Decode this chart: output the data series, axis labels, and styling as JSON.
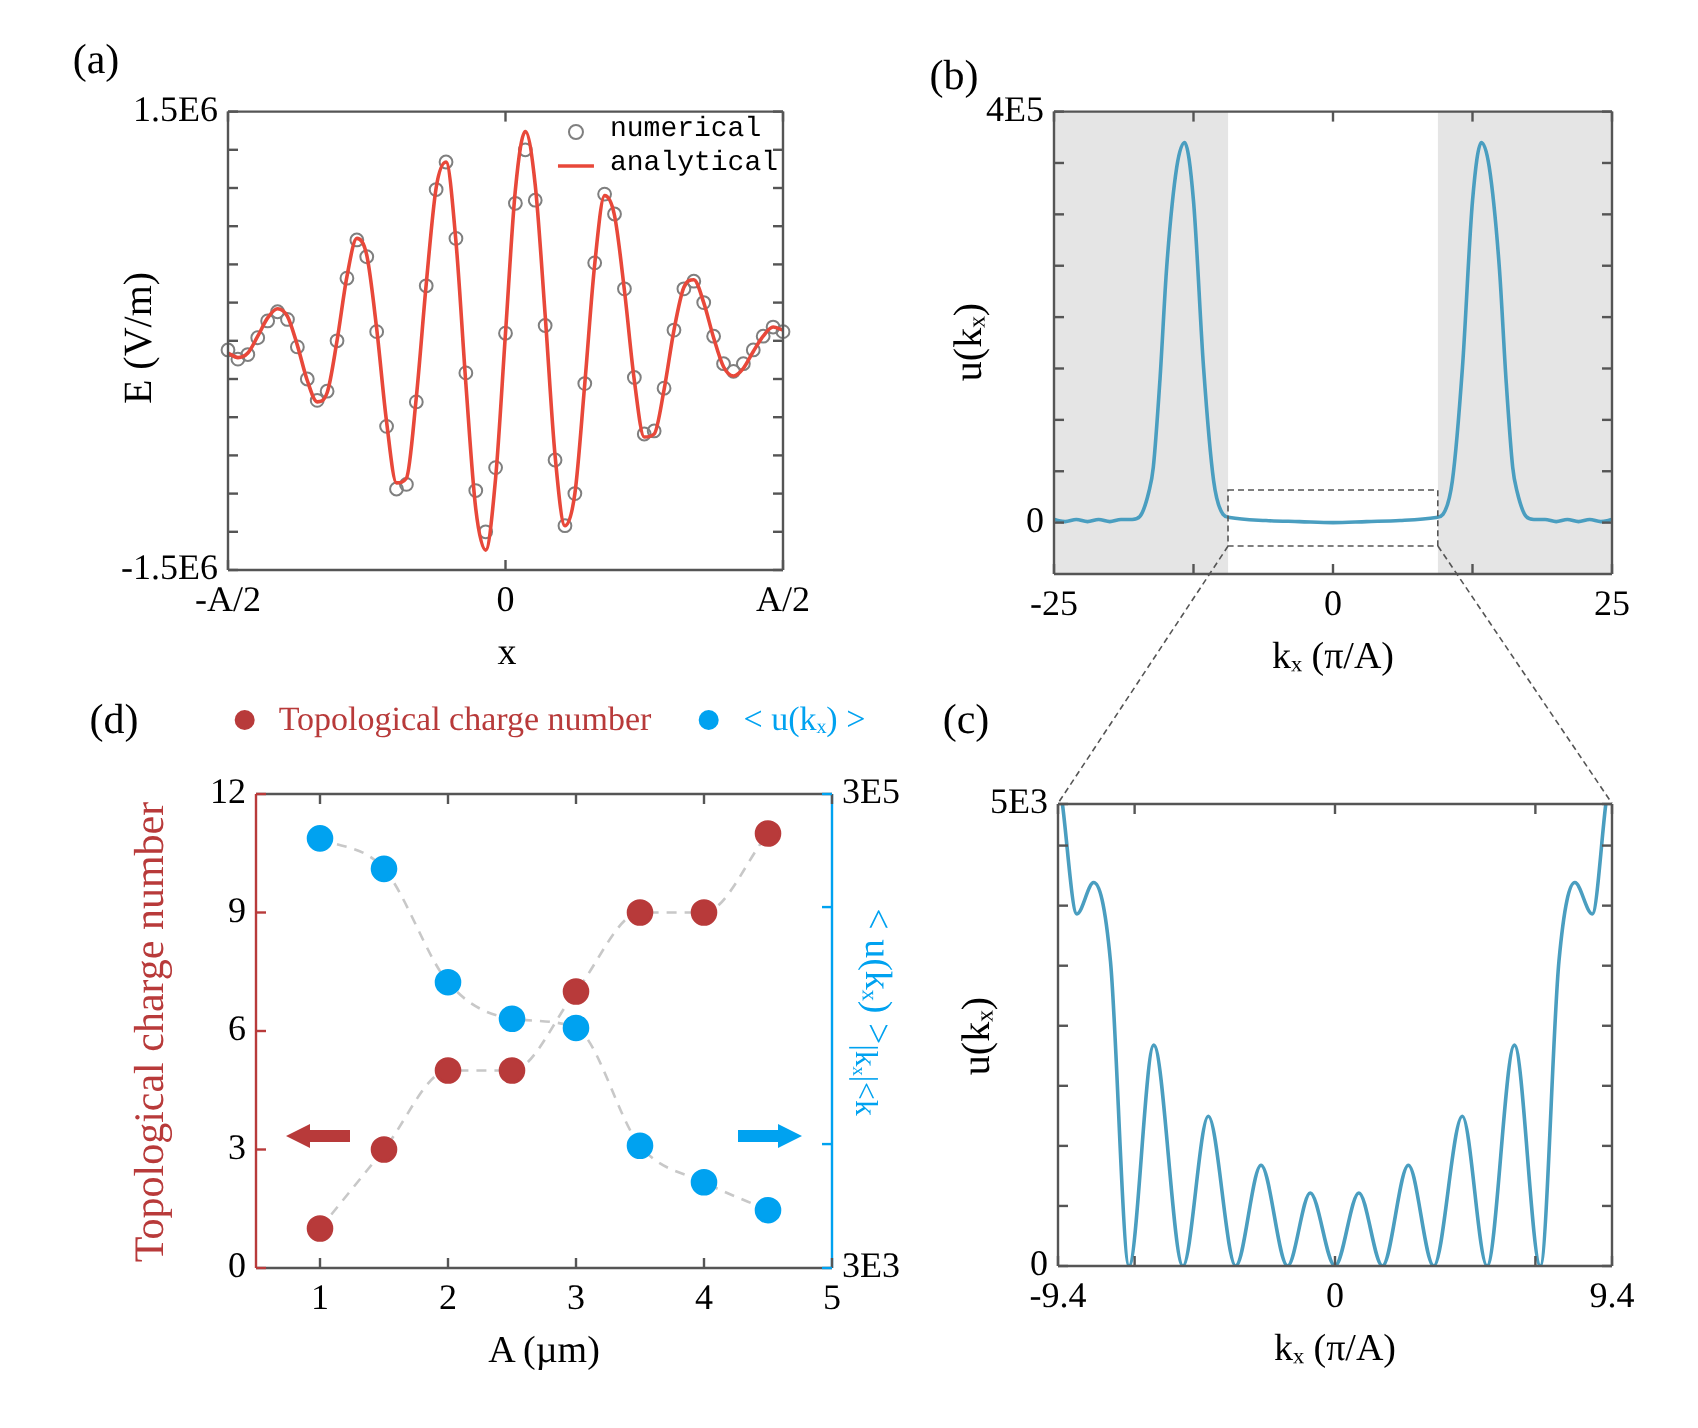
{
  "chart_data": [
    {
      "type": "line",
      "title": "(a)",
      "xlabel": "x",
      "ylabel": "E (V/m)",
      "legend": "top right",
      "categories": [
        "-A/2",
        null,
        null,
        null,
        null,
        null,
        null,
        null,
        null,
        null,
        null,
        null,
        null,
        null,
        null,
        null,
        null,
        null,
        null,
        null,
        null,
        null,
        null,
        null,
        null,
        null,
        null,
        null,
        "0",
        null,
        null,
        null,
        null,
        null,
        null,
        null,
        null,
        null,
        null,
        null,
        null,
        null,
        null,
        null,
        null,
        null,
        null,
        null,
        null,
        null,
        null,
        null,
        null,
        null,
        null,
        null,
        "A/2"
      ],
      "ylim": [
        -1500000,
        1500000
      ],
      "yticks": [
        {
          "value": -1500000,
          "label": "-1.5E6"
        },
        {
          "value": -1250000,
          "label": null
        },
        {
          "value": -1000000,
          "label": null
        },
        {
          "value": -750000,
          "label": null
        },
        {
          "value": -500000,
          "label": null
        },
        {
          "value": -250000,
          "label": null
        },
        {
          "value": 0,
          "label": null
        },
        {
          "value": 250000,
          "label": null
        },
        {
          "value": 500000,
          "label": null
        },
        {
          "value": 750000,
          "label": null
        },
        {
          "value": 1000000,
          "label": null
        },
        {
          "value": 1250000,
          "label": null
        },
        {
          "value": 1500000,
          "label": "1.5E6"
        }
      ],
      "series": [
        {
          "name": "numerical",
          "type": "scatter",
          "marker": "circle",
          "color": "#7f7f7f",
          "values": [
            -60000,
            -120000,
            -90000,
            20000,
            130000,
            190000,
            140000,
            -40000,
            -250000,
            -390000,
            -330000,
            0,
            410000,
            660000,
            550000,
            60000,
            -560000,
            -970000,
            -940000,
            -400000,
            360000,
            990000,
            1170000,
            670000,
            -210000,
            -980000,
            -1250000,
            -830000,
            50000,
            900000,
            1250000,
            920000,
            100000,
            -780000,
            -1210000,
            -1000000,
            -280000,
            510000,
            960000,
            830000,
            340000,
            -240000,
            -610000,
            -590000,
            -310000,
            70000,
            340000,
            390000,
            250000,
            30000,
            -150000,
            -200000,
            -150000,
            -60000,
            30000,
            90000,
            60000
          ]
        },
        {
          "name": "analytical",
          "type": "line",
          "color": "#e8483a",
          "values": [
            -80000,
            -110000,
            -80000,
            30000,
            150000,
            210000,
            160000,
            -30000,
            -260000,
            -400000,
            -340000,
            0,
            420000,
            670000,
            560000,
            80000,
            -530000,
            -930000,
            -900000,
            -370000,
            370000,
            1000000,
            1170000,
            650000,
            -280000,
            -1100000,
            -1370000,
            -900000,
            50000,
            990000,
            1370000,
            1020000,
            170000,
            -750000,
            -1210000,
            -1000000,
            -280000,
            500000,
            950000,
            820000,
            330000,
            -260000,
            -630000,
            -610000,
            -320000,
            70000,
            350000,
            400000,
            250000,
            20000,
            -170000,
            -230000,
            -180000,
            -70000,
            30000,
            90000,
            70000
          ]
        }
      ]
    },
    {
      "type": "line",
      "title": "(b)",
      "xlabel": "kₓ (π/A)",
      "ylabel": "u(kₓ)",
      "xlim": [
        -25,
        25
      ],
      "xticks": [
        -25,
        {
          "value": -12.5,
          "label": null
        },
        0,
        {
          "value": 12.5,
          "label": null
        },
        25
      ],
      "ylim": [
        -50000,
        400000
      ],
      "yticks": [
        0,
        {
          "value": 50000,
          "label": null
        },
        {
          "value": 100000,
          "label": null
        },
        {
          "value": 150000,
          "label": null
        },
        {
          "value": 200000,
          "label": null
        },
        {
          "value": 250000,
          "label": null
        },
        {
          "value": 300000,
          "label": null
        },
        {
          "value": 350000,
          "label": null
        },
        {
          "value": 400000,
          "label": "4E5"
        }
      ],
      "bands": [
        {
          "axis": "x",
          "from": -25,
          "to": -9.4,
          "color": "#e5e5e5"
        },
        {
          "axis": "x",
          "from": 9.4,
          "to": 25,
          "color": "#e5e5e5"
        }
      ],
      "series": [
        {
          "color": "#4a9ec0",
          "x": [
            -25,
            -24,
            -23,
            -22,
            -21,
            -20,
            -19,
            -18,
            -17.3,
            -16.5,
            -16.1,
            -15.5,
            -14.9,
            -14,
            -13.3,
            -12.5,
            -11.6,
            -10.7,
            -9.85,
            -9.25,
            -6,
            -3,
            0,
            3,
            6,
            9.25,
            9.85,
            10.7,
            11.6,
            12.5,
            13.3,
            14,
            14.9,
            15.5,
            16.1,
            16.5,
            17.3,
            18,
            19,
            20,
            21,
            22,
            23,
            24,
            25
          ],
          "values": [
            3000,
            1000,
            3000,
            1000,
            3000,
            1000,
            3000,
            3000,
            6000,
            30000,
            54000,
            140000,
            249000,
            346000,
            370000,
            313000,
            151000,
            41000,
            8000,
            5000,
            2000,
            1000,
            0,
            1000,
            2000,
            5000,
            8000,
            41000,
            151000,
            313000,
            370000,
            346000,
            249000,
            140000,
            54000,
            30000,
            6000,
            3000,
            3000,
            1000,
            3000,
            1000,
            3000,
            1000,
            3000
          ]
        }
      ]
    },
    {
      "type": "line",
      "title": "(d)",
      "xlabel": "A (µm)",
      "ylabel": "Topological charge number",
      "y2label": "< u(kₓ) >$_{|kₓ|<k}$",
      "legend": "top",
      "xlim": [
        0.5,
        5
      ],
      "xticks": [
        1,
        2,
        3,
        4,
        5
      ],
      "ylim": [
        0,
        12
      ],
      "yticks": [
        0,
        3,
        6,
        9,
        12
      ],
      "y2lim": [
        3000,
        300000
      ],
      "y2ticks": [
        {
          "value": 3000,
          "label": "3E3"
        },
        {
          "value": 10000,
          "label": null
        },
        {
          "value": 100000,
          "label": null
        },
        {
          "value": 300000,
          "label": "3E5"
        }
      ],
      "log": "y2",
      "x": [
        1,
        1.5,
        2,
        2.5,
        3,
        3.5,
        4,
        4.5
      ],
      "series": [
        {
          "name": "Topological charge number",
          "type": "line",
          "marker": "circle",
          "line_style": "dashed",
          "color": "#b83a3a",
          "values": [
            1,
            3,
            5,
            5,
            7,
            9,
            9,
            11
          ]
        },
        {
          "name": "< u(kₓ) >",
          "type": "line",
          "marker": "circle",
          "line_style": "dashed",
          "color": "#00a2f0",
          "axis": "y2",
          "values": [
            195000,
            145000,
            48200,
            33800,
            30900,
            9840,
            6900,
            5260
          ]
        }
      ]
    },
    {
      "type": "line",
      "title": "(c)",
      "xlabel": "kₓ (π/A)",
      "ylabel": "u(kₓ)",
      "xlim": [
        -9.4,
        9.4
      ],
      "xticks": [
        -9.4,
        {
          "value": -6.8,
          "label": null
        },
        0,
        {
          "value": 6.8,
          "label": null
        },
        9.4
      ],
      "ylim": [
        0,
        5000
      ],
      "yticks": [
        0,
        {
          "value": 650,
          "label": null
        },
        {
          "value": 1300,
          "label": null
        },
        {
          "value": 1950,
          "label": null
        },
        {
          "value": 2600,
          "label": null
        },
        {
          "value": 3250,
          "label": null
        },
        {
          "value": 3900,
          "label": null
        },
        {
          "value": 4550,
          "label": null
        },
        {
          "value": 5000,
          "label": "5E3"
        }
      ],
      "series": [
        {
          "color": "#4a9ec0",
          "x": [
            -9.25,
            -8.76,
            -8.19,
            -7.62,
            -6.99,
            -6.15,
            -5.16,
            -4.3,
            -3.37,
            -2.51,
            -1.61,
            -0.84,
            0,
            0.81,
            1.61,
            2.49,
            3.35,
            4.32,
            5.16,
            6.09,
            6.97,
            7.6,
            8.14,
            8.73,
            9.19
          ],
          "values": [
            5000,
            3810,
            4150,
            3300,
            0,
            2390,
            0,
            1620,
            0,
            1090,
            0,
            790,
            0,
            790,
            0,
            1090,
            0,
            1620,
            0,
            2390,
            0,
            3300,
            4150,
            3810,
            5000
          ]
        }
      ]
    }
  ]
}
